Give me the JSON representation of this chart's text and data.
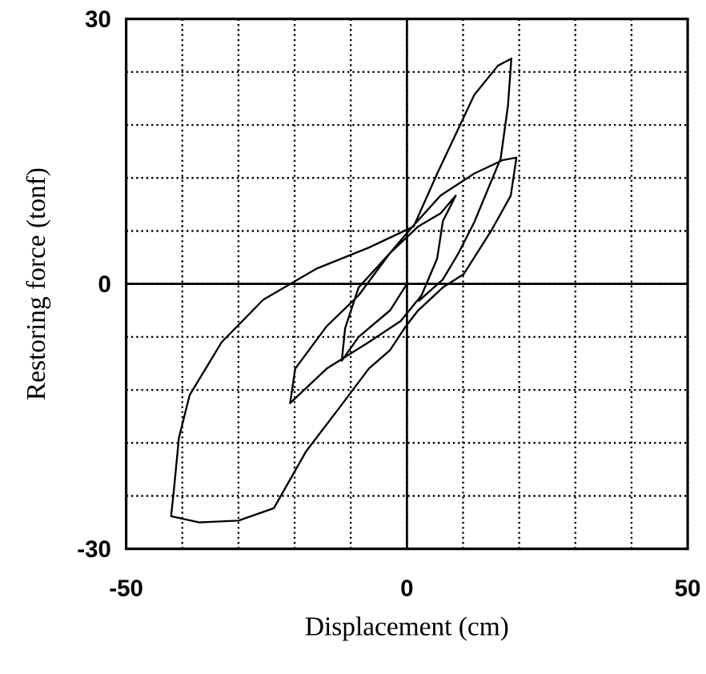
{
  "chart_data": {
    "type": "line",
    "xlabel": "Displacement (cm)",
    "ylabel": "Restoring force (tonf)",
    "xlim": [
      -50,
      50
    ],
    "xticks": [
      -50,
      {
        "value": -40,
        "label": null
      },
      {
        "value": -30,
        "label": null
      },
      {
        "value": -20,
        "label": null
      },
      {
        "value": -10,
        "label": null
      },
      0,
      {
        "value": 10,
        "label": null
      },
      {
        "value": 20,
        "label": null
      },
      {
        "value": 30,
        "label": null
      },
      {
        "value": 40,
        "label": null
      },
      50
    ],
    "ylim": [
      -30,
      30
    ],
    "yticks": [
      -30,
      {
        "value": -24,
        "label": null
      },
      {
        "value": -18,
        "label": null
      },
      {
        "value": -12,
        "label": null
      },
      {
        "value": -6,
        "label": null
      },
      0,
      {
        "value": 6,
        "label": null
      },
      {
        "value": 12,
        "label": null
      },
      {
        "value": 18,
        "label": null
      },
      {
        "value": 24,
        "label": null
      },
      30
    ],
    "grid": true,
    "marker": "none",
    "line_style": "solid",
    "series": [
      {
        "color": "#000000",
        "x": [
          0,
          -3,
          -8.6,
          -11.6,
          -11,
          -8.6,
          -3,
          2,
          6,
          8.7,
          6.4,
          5.4,
          2.6,
          -1.1,
          -6.8,
          -14.3,
          -20.8,
          -19.9,
          -14.3,
          -8.6,
          -3,
          1,
          6,
          12,
          17,
          19.5,
          18.5,
          15,
          10.1,
          6.4,
          2,
          -0.2,
          -3,
          -6.8,
          -12,
          -18,
          -23.7,
          -30,
          -37,
          -42,
          -41.5,
          -40.6,
          -38.7,
          -33,
          -25.6,
          -16.2,
          -6.8,
          1.2,
          5.4,
          12,
          16.2,
          18.6,
          18,
          16.7,
          12,
          9.2,
          6.4,
          2
        ],
        "values": [
          0,
          -3,
          -6,
          -8.7,
          -5,
          -0.4,
          3.5,
          6.5,
          8,
          10,
          7.1,
          2.9,
          -1.3,
          -4.2,
          -6.6,
          -9.6,
          -13.5,
          -9.6,
          -4.8,
          -1.3,
          3.5,
          6.5,
          10,
          12.5,
          14,
          14.3,
          10,
          6,
          1.1,
          -0.4,
          -3,
          -4.8,
          -7.5,
          -9.6,
          -14,
          -19,
          -25.4,
          -26.8,
          -27,
          -26.3,
          -23.3,
          -17.4,
          -12.6,
          -6.6,
          -1.8,
          1.7,
          4.1,
          6.5,
          12.5,
          21.4,
          24.7,
          25.5,
          20.2,
          14.2,
          7,
          3.5,
          0.5,
          -2
        ]
      }
    ]
  }
}
